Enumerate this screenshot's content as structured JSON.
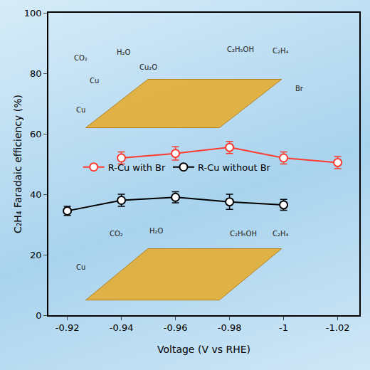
{
  "chart_data": {
    "type": "line",
    "x_label": "Voltage (V vs RHE)",
    "y_label": "C₂H₄ Faradaic efficiency (%)",
    "xlim": [
      -0.913,
      -1.028
    ],
    "xticks": [
      -0.92,
      -0.94,
      -0.96,
      -0.98,
      -1.0,
      -1.02
    ],
    "ylim": [
      0,
      100
    ],
    "yticks": [
      0,
      20,
      40,
      60,
      80,
      100
    ],
    "grid": false,
    "legend": "center",
    "marker": "circle",
    "series": [
      {
        "name": "R-Cu with Br",
        "color": "#ff3b30",
        "x": [
          -0.94,
          -0.96,
          -0.98,
          -1.0,
          -1.02
        ],
        "values": [
          52,
          53.5,
          55.5,
          52,
          50.5
        ],
        "errors": [
          2,
          2.2,
          2,
          2,
          2
        ]
      },
      {
        "name": "R-Cu without Br",
        "color": "#000000",
        "x": [
          -0.92,
          -0.94,
          -0.96,
          -0.98,
          -1.0
        ],
        "values": [
          34.5,
          38,
          39,
          37.5,
          36.5
        ],
        "errors": [
          1.5,
          2,
          1.8,
          2.5,
          1.8
        ]
      }
    ],
    "annotations": [
      {
        "text": "CO₂"
      },
      {
        "text": "H₂O"
      },
      {
        "text": "Cu₂O"
      },
      {
        "text": "Cu"
      },
      {
        "text": "C₂H₅OH"
      },
      {
        "text": "C₂H₄"
      },
      {
        "text": "Br"
      },
      {
        "text": "Cu"
      },
      {
        "text": "CO₂"
      },
      {
        "text": "H₂O"
      },
      {
        "text": "C₂H₅OH"
      },
      {
        "text": "C₂H₄"
      },
      {
        "text": "Cu"
      }
    ]
  }
}
